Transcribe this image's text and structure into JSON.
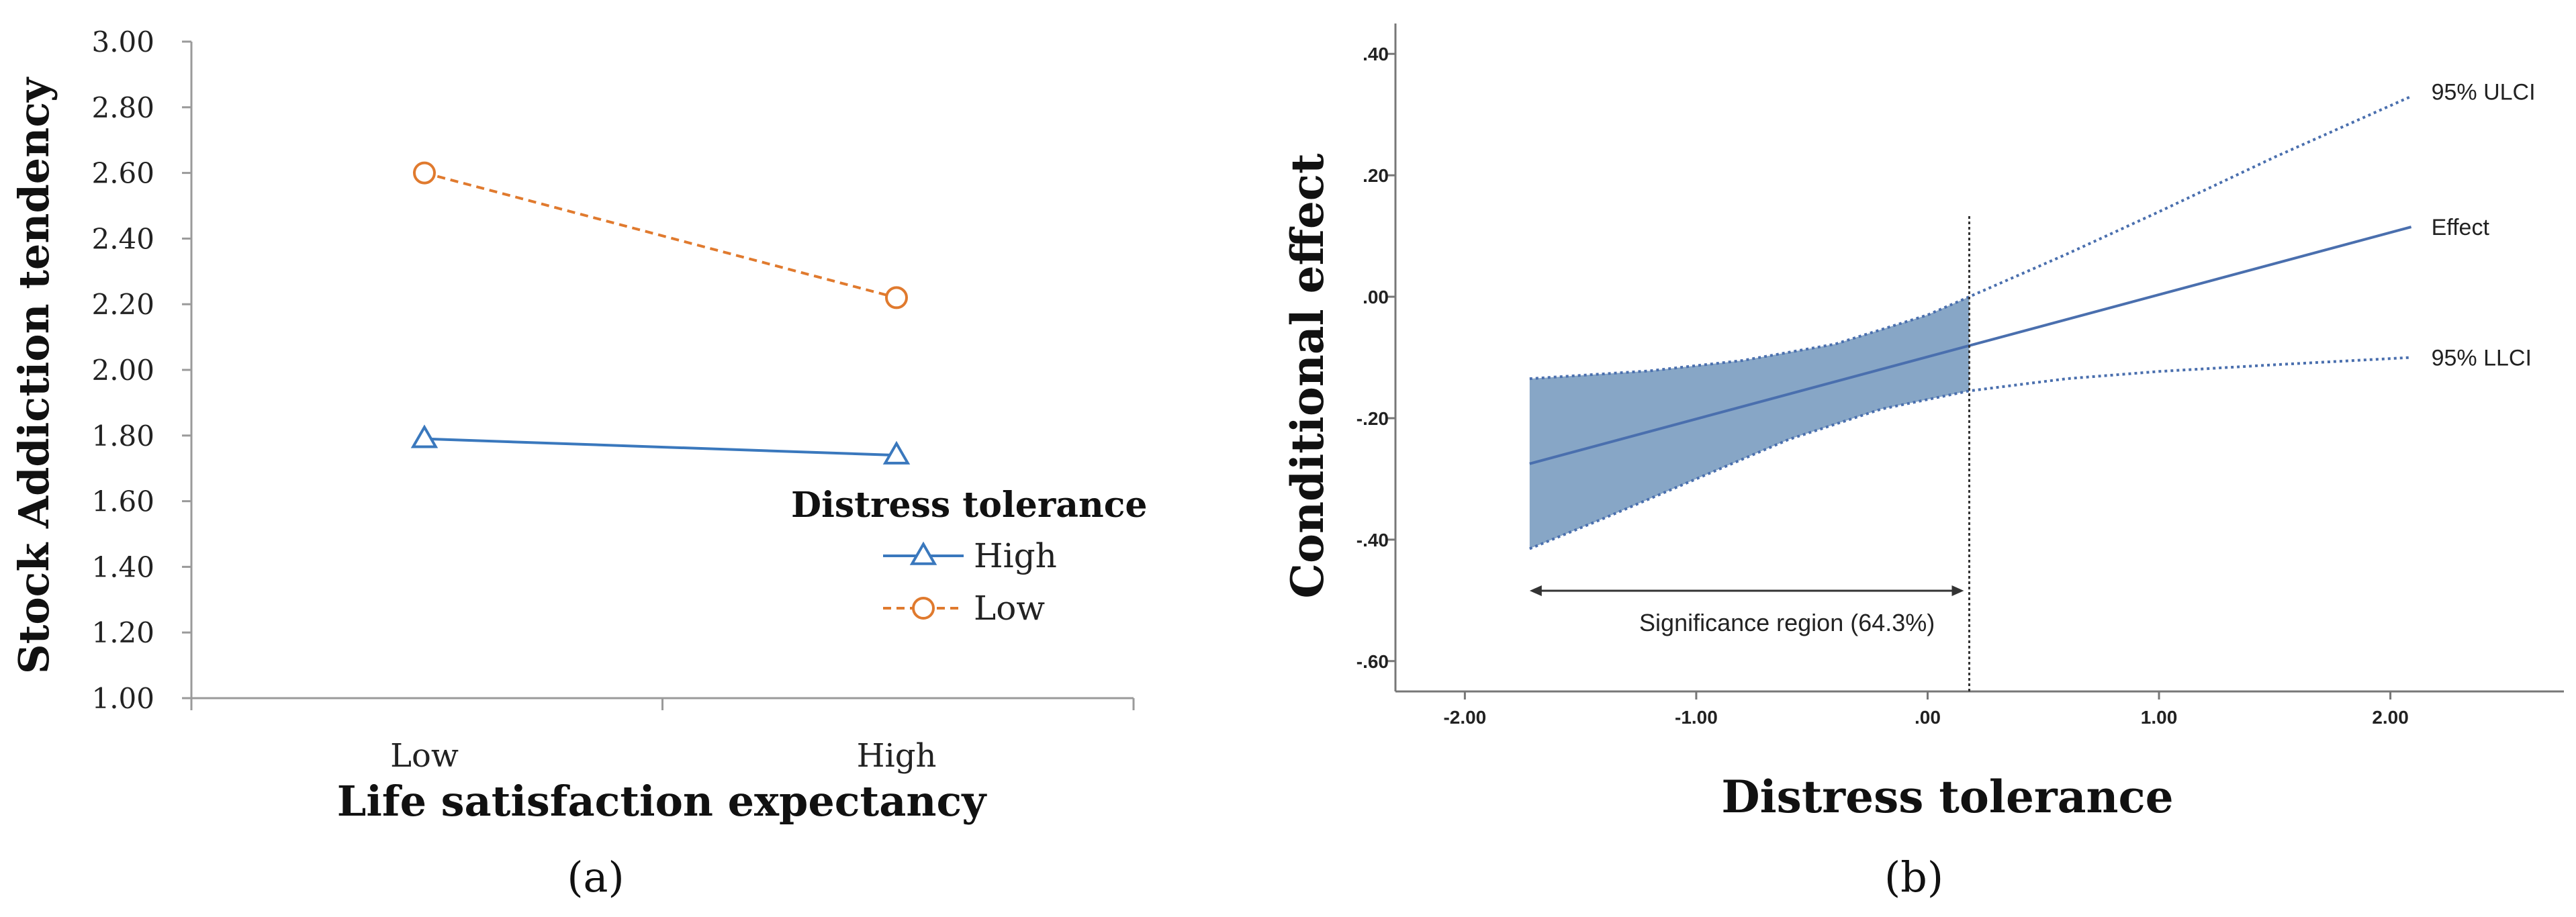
{
  "chart_data": [
    {
      "type": "line",
      "panel_label": "(a)",
      "xlabel": "Life satisfaction expectancy",
      "ylabel": "Stock Addiction tendency",
      "categories": [
        "Low",
        "High"
      ],
      "ylim": [
        1.0,
        3.0
      ],
      "yticks": [
        "1.00",
        "1.20",
        "1.40",
        "1.60",
        "1.80",
        "2.00",
        "2.20",
        "2.40",
        "2.60",
        "2.80",
        "3.00"
      ],
      "legend_title": "Distress tolerance",
      "series": [
        {
          "name": "High",
          "values": [
            1.79,
            1.74
          ],
          "color": "#3a78bd",
          "marker": "triangle",
          "dash": "solid"
        },
        {
          "name": "Low",
          "values": [
            2.6,
            2.22
          ],
          "color": "#e07a2e",
          "marker": "circle",
          "dash": "dashed"
        }
      ]
    },
    {
      "type": "line",
      "panel_label": "(b)",
      "xlabel": "Distress tolerance",
      "ylabel": "Conditional effect",
      "xlim": [
        -2.3,
        2.75
      ],
      "ylim": [
        -0.65,
        0.45
      ],
      "xticks": [
        {
          "value": -2.0,
          "label": "-2.00"
        },
        {
          "value": -1.0,
          "label": "-1.00"
        },
        {
          "value": 0.0,
          "label": ".00"
        },
        {
          "value": 1.0,
          "label": "1.00"
        },
        {
          "value": 2.0,
          "label": "2.00"
        }
      ],
      "yticks": [
        {
          "value": 0.4,
          "label": ".40"
        },
        {
          "value": 0.2,
          "label": ".20"
        },
        {
          "value": 0.0,
          "label": ".00"
        },
        {
          "value": -0.2,
          "label": "-.20"
        },
        {
          "value": -0.4,
          "label": "-.40"
        },
        {
          "value": -0.6,
          "label": "-.60"
        }
      ],
      "effect": {
        "name": "Effect",
        "x": [
          -1.72,
          2.09
        ],
        "y": [
          -0.275,
          0.115
        ]
      },
      "ulci": {
        "name": "95% ULCI",
        "x": [
          -1.72,
          -1.2,
          -0.8,
          -0.4,
          0.0,
          0.18,
          0.6,
          1.0,
          1.5,
          2.09
        ],
        "y": [
          -0.135,
          -0.122,
          -0.105,
          -0.078,
          -0.03,
          0.0,
          0.07,
          0.14,
          0.23,
          0.33
        ]
      },
      "llci": {
        "name": "95% LLCI",
        "x": [
          -1.72,
          -1.4,
          -1.0,
          -0.6,
          -0.2,
          0.18,
          0.6,
          1.0,
          1.5,
          2.09
        ],
        "y": [
          -0.415,
          -0.365,
          -0.3,
          -0.235,
          -0.185,
          -0.155,
          -0.135,
          -0.123,
          -0.112,
          -0.1
        ]
      },
      "significance_boundary": 0.18,
      "significance_label": "Significance region (64.3%)",
      "colors": {
        "line": "#4a6fae",
        "fill": "#6d93b9",
        "boundary": "#333333"
      }
    }
  ]
}
